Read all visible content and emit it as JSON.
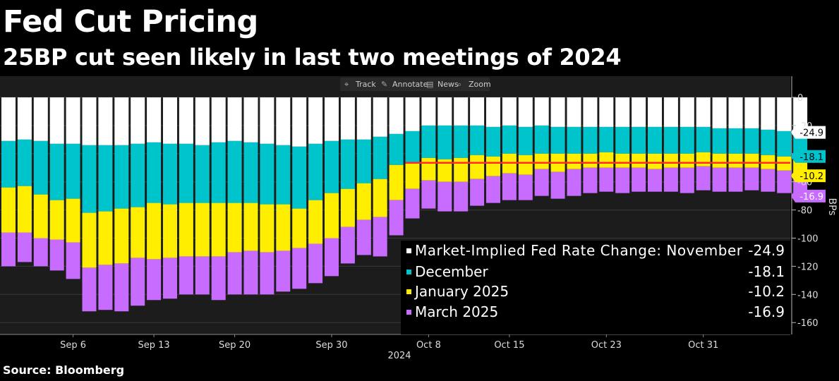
{
  "header": {
    "title": "Fed Cut Pricing",
    "subtitle": "25BP cut seen likely in last two meetings of 2024"
  },
  "footer": {
    "source": "Source: Bloomberg"
  },
  "toolbar": {
    "items": [
      {
        "label": "Track",
        "icon": "crosshair-icon"
      },
      {
        "label": "Annotate",
        "icon": "pencil-icon"
      },
      {
        "label": "News",
        "icon": "news-icon"
      },
      {
        "label": "Zoom",
        "icon": "magnifier-icon"
      }
    ]
  },
  "colors": {
    "background": "#000000",
    "plot_background": "#1c1c1c",
    "november": "#ffffff",
    "december": "#00c4cc",
    "january": "#ffee00",
    "march": "#c76cff",
    "reference_line": "#ff2b2b",
    "gridline": "#3a3a3a"
  },
  "chart_data": {
    "type": "bar",
    "stacked": true,
    "title": "Fed Cut Pricing",
    "subtitle": "25BP cut seen likely in last two meetings of 2024",
    "ylabel": "BPs",
    "y_axis_side": "right",
    "ylim": [
      -165,
      15
    ],
    "y_ticks": [
      0,
      -20,
      -40,
      -60,
      -80,
      -100,
      -120,
      -140,
      -160
    ],
    "x_tick_labels": [
      "Sep 6",
      "Sep 13",
      "Sep 20",
      "Sep 30",
      "Oct 8",
      "Oct 15",
      "Oct 23",
      "Oct 31"
    ],
    "x_tick_indices": [
      4,
      9,
      14,
      20,
      26,
      31,
      37,
      43
    ],
    "x_axis_year": "2024",
    "grid": true,
    "legend_placement": "bottom-right",
    "legend": {
      "heading": "Market-Implied Fed Rate Change:",
      "entries": [
        {
          "name": "November",
          "value": "-24.9"
        },
        {
          "name": "December",
          "value": "-18.1"
        },
        {
          "name": "January 2025",
          "value": "-10.2"
        },
        {
          "name": "March 2025",
          "value": "-16.9"
        }
      ]
    },
    "last_value_labels": [
      "-24.9",
      "-18.1",
      "-10.2",
      "-16.9"
    ],
    "reference_line": {
      "y": -46.5,
      "from_index": 25
    },
    "series": [
      {
        "name": "November",
        "values": [
          -31,
          -30,
          -31,
          -33,
          -33,
          -34,
          -34,
          -34,
          -33,
          -32,
          -33,
          -33,
          -34,
          -32,
          -31,
          -32,
          -33,
          -34,
          -35,
          -33,
          -31,
          -30,
          -30,
          -28,
          -26,
          -24,
          -20,
          -20,
          -20,
          -20,
          -21,
          -20,
          -21,
          -20,
          -21,
          -21,
          -21,
          -21,
          -21,
          -21,
          -21,
          -21,
          -21,
          -21,
          -22,
          -22,
          -22,
          -23,
          -24,
          -24.9
        ]
      },
      {
        "name": "December",
        "values": [
          -33,
          -33,
          -38,
          -40,
          -39,
          -48,
          -47,
          -45,
          -45,
          -43,
          -43,
          -42,
          -41,
          -43,
          -44,
          -43,
          -43,
          -42,
          -44,
          -40,
          -37,
          -35,
          -31,
          -30,
          -22,
          -23,
          -23,
          -24,
          -23,
          -21,
          -21,
          -20,
          -20,
          -20,
          -19,
          -19,
          -19,
          -18,
          -19,
          -19,
          -19,
          -19,
          -19,
          -18,
          -18,
          -18,
          -18,
          -18,
          -18,
          -18.1
        ]
      },
      {
        "name": "January 2025",
        "values": [
          -32,
          -33,
          -31,
          -28,
          -31,
          -39,
          -38,
          -39,
          -36,
          -40,
          -38,
          -38,
          -38,
          -38,
          -35,
          -34,
          -34,
          -33,
          -28,
          -31,
          -32,
          -27,
          -26,
          -27,
          -25,
          -18,
          -16,
          -16,
          -17,
          -17,
          -14,
          -14,
          -14,
          -11,
          -13,
          -11,
          -10,
          -11,
          -10,
          -10,
          -11,
          -10,
          -10,
          -10,
          -10,
          -10,
          -10,
          -10,
          -10,
          -10.2
        ]
      },
      {
        "name": "March 2025",
        "values": [
          -24,
          -21,
          -20,
          -22,
          -26,
          -31,
          -32,
          -34,
          -34,
          -29,
          -29,
          -27,
          -27,
          -31,
          -30,
          -31,
          -30,
          -29,
          -29,
          -28,
          -27,
          -26,
          -25,
          -28,
          -25,
          -21,
          -20,
          -21,
          -21,
          -19,
          -19,
          -19,
          -18,
          -19,
          -19,
          -19,
          -18,
          -17,
          -18,
          -17,
          -16,
          -17,
          -18,
          -17,
          -17,
          -17,
          -16,
          -16,
          -16,
          -16.9
        ]
      }
    ]
  }
}
